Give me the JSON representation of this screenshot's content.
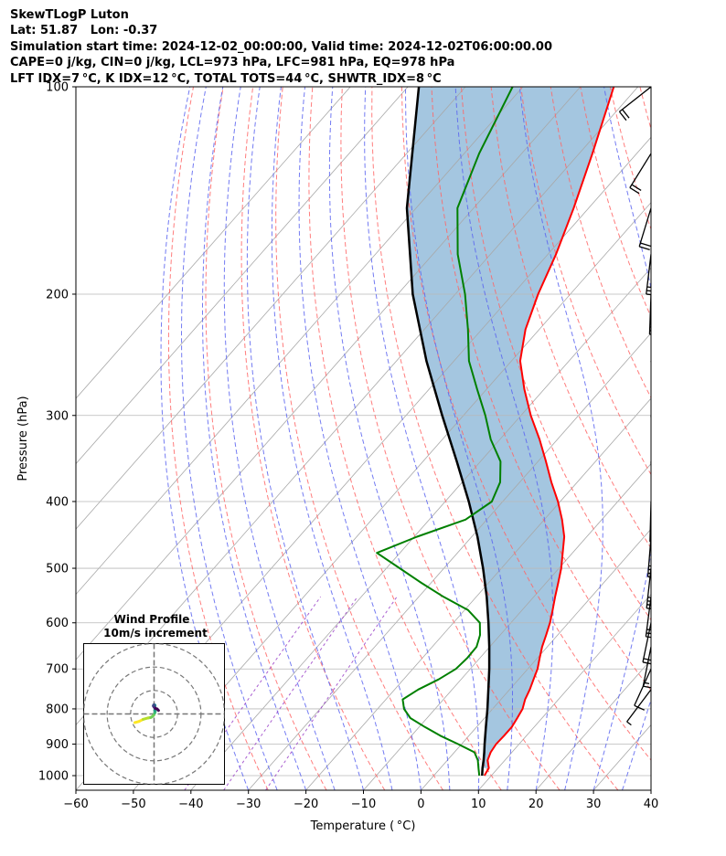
{
  "header": {
    "line1": "SkewTLogP Luton",
    "line2": "Lat: 51.87   Lon: -0.37",
    "line3": "Simulation start time: 2024-12-02_00:00:00, Valid time: 2024-12-02T06:00:00.00",
    "line4": "CAPE=0 j/kg, CIN=0 j/kg, LCL=973 hPa, LFC=981 hPa, EQ=978 hPa",
    "line5": "LFT IDX=7 °C, K IDX=12 °C, TOTAL TOTS=44 °C, SHWTR_IDX=8 °C"
  },
  "chart_data": {
    "type": "skew-t",
    "xlabel": "Temperature ( °C)",
    "ylabel": "Pressure (hPa)",
    "xlim": [
      -60,
      40
    ],
    "ylim": [
      1050,
      100
    ],
    "x_ticks": [
      "−60",
      "−50",
      "−40",
      "−30",
      "−20",
      "−10",
      "0",
      "10",
      "20",
      "30",
      "40"
    ],
    "x_tick_values": [
      -60,
      -50,
      -40,
      -30,
      -20,
      -10,
      0,
      10,
      20,
      30,
      40
    ],
    "y_ticks": [
      "1000",
      "900",
      "800",
      "700",
      "600",
      "500",
      "400",
      "300",
      "200",
      "100"
    ],
    "y_tick_values": [
      1000,
      900,
      800,
      700,
      600,
      500,
      400,
      300,
      200,
      100
    ],
    "y_scale": "log",
    "grid": true,
    "series": [
      {
        "role": "temperature",
        "color": "#ff0000",
        "points": [
          [
            1000,
            8.8
          ],
          [
            975,
            8.4
          ],
          [
            950,
            7.0
          ],
          [
            925,
            6.3
          ],
          [
            900,
            6.0
          ],
          [
            875,
            6.1
          ],
          [
            850,
            6.1
          ],
          [
            825,
            5.7
          ],
          [
            800,
            5.2
          ],
          [
            775,
            4.2
          ],
          [
            750,
            3.5
          ],
          [
            725,
            2.6
          ],
          [
            700,
            1.7
          ],
          [
            675,
            0.4
          ],
          [
            650,
            -0.9
          ],
          [
            625,
            -2.0
          ],
          [
            600,
            -3.2
          ],
          [
            575,
            -4.7
          ],
          [
            550,
            -6.3
          ],
          [
            525,
            -7.9
          ],
          [
            500,
            -9.6
          ],
          [
            475,
            -11.7
          ],
          [
            450,
            -13.9
          ],
          [
            425,
            -16.9
          ],
          [
            400,
            -20.4
          ],
          [
            375,
            -24.5
          ],
          [
            350,
            -28.6
          ],
          [
            325,
            -33.1
          ],
          [
            300,
            -38.3
          ],
          [
            275,
            -43.4
          ],
          [
            250,
            -48.5
          ],
          [
            225,
            -52.4
          ],
          [
            200,
            -55.6
          ],
          [
            175,
            -58.6
          ],
          [
            150,
            -62.6
          ],
          [
            125,
            -67.7
          ],
          [
            100,
            -74.2
          ]
        ]
      },
      {
        "role": "dewpoint",
        "color": "#008000",
        "points": [
          [
            1000,
            7.9
          ],
          [
            975,
            6.6
          ],
          [
            950,
            5.3
          ],
          [
            925,
            3.5
          ],
          [
            900,
            -0.6
          ],
          [
            875,
            -5.0
          ],
          [
            850,
            -9.0
          ],
          [
            825,
            -12.9
          ],
          [
            800,
            -15.4
          ],
          [
            775,
            -17.1
          ],
          [
            750,
            -15.9
          ],
          [
            725,
            -13.9
          ],
          [
            700,
            -12.5
          ],
          [
            675,
            -12.2
          ],
          [
            650,
            -12.3
          ],
          [
            625,
            -13.5
          ],
          [
            600,
            -15.4
          ],
          [
            575,
            -19.4
          ],
          [
            550,
            -25.7
          ],
          [
            525,
            -31.7
          ],
          [
            500,
            -37.7
          ],
          [
            475,
            -44.0
          ],
          [
            450,
            -39.5
          ],
          [
            425,
            -33.7
          ],
          [
            400,
            -31.9
          ],
          [
            375,
            -33.4
          ],
          [
            350,
            -36.5
          ],
          [
            325,
            -41.6
          ],
          [
            300,
            -46.2
          ],
          [
            275,
            -51.6
          ],
          [
            250,
            -57.4
          ],
          [
            225,
            -62.4
          ],
          [
            200,
            -68.3
          ],
          [
            175,
            -75.7
          ],
          [
            150,
            -82.8
          ],
          [
            125,
            -87.4
          ],
          [
            100,
            -91.8
          ]
        ]
      },
      {
        "role": "parcel",
        "color": "#000000",
        "points": [
          [
            1000,
            8.4
          ],
          [
            975,
            7.3
          ],
          [
            950,
            6.3
          ],
          [
            925,
            5.2
          ],
          [
            900,
            4.0
          ],
          [
            850,
            1.6
          ],
          [
            800,
            -0.9
          ],
          [
            750,
            -3.7
          ],
          [
            700,
            -6.7
          ],
          [
            650,
            -10.1
          ],
          [
            600,
            -13.9
          ],
          [
            550,
            -18.2
          ],
          [
            500,
            -23.2
          ],
          [
            450,
            -29.0
          ],
          [
            400,
            -35.9
          ],
          [
            350,
            -44.1
          ],
          [
            300,
            -53.7
          ],
          [
            250,
            -64.8
          ],
          [
            200,
            -77.4
          ],
          [
            150,
            -91.6
          ],
          [
            100,
            -108.1
          ]
        ]
      }
    ],
    "wind_barbs": [
      {
        "p": 1000,
        "u": -8.2,
        "v": -3.7
      },
      {
        "p": 975,
        "u": -6.4,
        "v": -3.2
      },
      {
        "p": 950,
        "u": -4.7,
        "v": -2.3
      },
      {
        "p": 925,
        "u": -2.5,
        "v": -1.7
      },
      {
        "p": 900,
        "u": -1.4,
        "v": -1.5
      },
      {
        "p": 850,
        "u": -0.9,
        "v": -1.2
      },
      {
        "p": 800,
        "u": -0.2,
        "v": -0.6
      },
      {
        "p": 750,
        "u": 0.3,
        "v": 0.4
      },
      {
        "p": 700,
        "u": 0.5,
        "v": 1.1
      },
      {
        "p": 650,
        "u": 0.3,
        "v": 1.5
      },
      {
        "p": 600,
        "u": 0.5,
        "v": 2.4
      },
      {
        "p": 550,
        "u": 0.4,
        "v": 3.1
      },
      {
        "p": 500,
        "u": 0.4,
        "v": 3.6
      },
      {
        "p": 450,
        "u": 0.3,
        "v": 3.8
      },
      {
        "p": 400,
        "u": 0.1,
        "v": 3.8
      },
      {
        "p": 350,
        "u": -0.1,
        "v": 3.8
      },
      {
        "p": 300,
        "u": -0.2,
        "v": 3.8
      },
      {
        "p": 250,
        "u": -0.3,
        "v": 3.4
      },
      {
        "p": 225,
        "u": -0.1,
        "v": 3.1
      },
      {
        "p": 200,
        "u": 0.1,
        "v": 2.8
      },
      {
        "p": 175,
        "u": 0.3,
        "v": 2.5
      },
      {
        "p": 150,
        "u": 0.7,
        "v": 2.3
      },
      {
        "p": 125,
        "u": 1.3,
        "v": 2.1
      },
      {
        "p": 100,
        "u": 1.9,
        "v": 1.5
      }
    ],
    "hodograph": {
      "title": "Wind Profile",
      "subtitle": "10m/s increment",
      "ring_speeds": [
        10,
        20,
        30
      ],
      "range": [
        -30,
        30
      ]
    },
    "colors": {
      "temperature": "#ff0000",
      "dewpoint": "#008000",
      "parcel": "#000000",
      "cape_fill": "#9fc3de",
      "dry_adiabat": "#ff6666",
      "moist_adiabat": "#5a64f0",
      "mixing_ratio": "#9a42c8",
      "isotherm": "#a8a8a8",
      "grid": "#b8b8b8"
    }
  }
}
